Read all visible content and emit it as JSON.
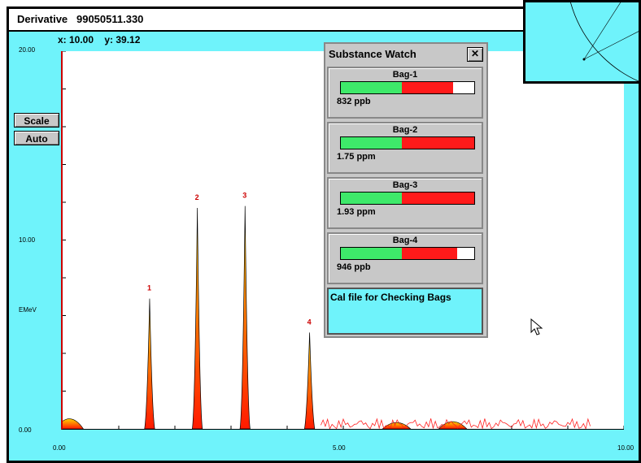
{
  "window": {
    "title": "Derivative   99050511.330",
    "readout": "x: 10.00    y: 39.12"
  },
  "side_buttons": {
    "scale": "Scale",
    "auto": "Auto"
  },
  "chart_data": {
    "type": "area",
    "ylabel": "EMeV",
    "y_ticks": [
      "20.00",
      "10.00",
      "0.00"
    ],
    "x_ticks": [
      "0.00",
      "5.00",
      "10.00"
    ],
    "xlim": [
      0,
      10
    ],
    "ylim": [
      0,
      20
    ],
    "peaks": [
      {
        "label": "1",
        "x": 1.55,
        "height": 6.9
      },
      {
        "label": "2",
        "x": 2.4,
        "height": 11.7
      },
      {
        "label": "3",
        "x": 3.25,
        "height": 11.8
      },
      {
        "label": "4",
        "x": 4.4,
        "height": 5.1
      }
    ],
    "small_bumps": [
      {
        "x": 0.12,
        "height": 0.9
      },
      {
        "x": 5.95,
        "height": 0.5
      },
      {
        "x": 6.95,
        "height": 0.6
      }
    ]
  },
  "substance_watch": {
    "title": "Substance Watch",
    "close_label": "✕",
    "bags": [
      {
        "name": "Bag-1",
        "value": "832 ppb",
        "green": 0.46,
        "red": 0.38
      },
      {
        "name": "Bag-2",
        "value": "1.75 ppm",
        "green": 0.46,
        "red": 0.54
      },
      {
        "name": "Bag-3",
        "value": "1.93 ppm",
        "green": 0.46,
        "red": 0.54
      },
      {
        "name": "Bag-4",
        "value": "946 ppb",
        "green": 0.46,
        "red": 0.41
      }
    ],
    "note": "Cal file for Checking Bags"
  },
  "colors": {
    "background": "#6ff3fb",
    "peak_top": "#ffd400",
    "peak_base": "#ff1a00",
    "bar_green": "#3ee96a",
    "bar_red": "#ff1a1a"
  }
}
